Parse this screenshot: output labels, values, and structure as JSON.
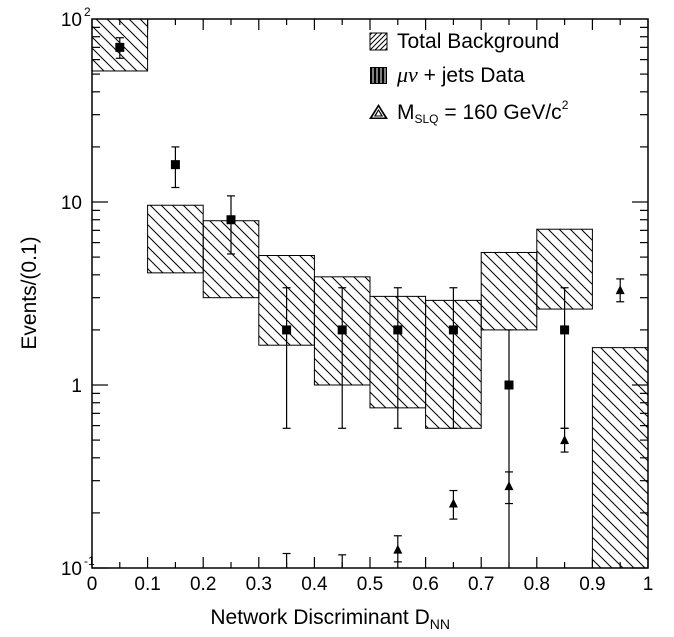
{
  "chart_data": {
    "type": "bar",
    "xlabel": "Network Discriminant D",
    "xlabel_sub": "NN",
    "ylabel": "Events/(0.1)",
    "xlim": [
      0,
      1
    ],
    "ylim": [
      0.1,
      100
    ],
    "y_scale": "log",
    "grid": false,
    "legend_position": "top-right",
    "x_ticks": [
      "0",
      "0.1",
      "0.2",
      "0.3",
      "0.4",
      "0.5",
      "0.6",
      "0.7",
      "0.8",
      "0.9",
      "1"
    ],
    "y_tick_labels": [
      {
        "value": 100,
        "base": "10",
        "exp": "2"
      },
      {
        "value": 10,
        "base": "10",
        "exp": ""
      },
      {
        "value": 1,
        "base": "1",
        "exp": ""
      },
      {
        "value": 0.1,
        "base": "10",
        "exp": "-1"
      }
    ],
    "legend": {
      "background": "Total Background",
      "data_prefix": "μν",
      "data_suffix": " + jets Data",
      "signal_main": "M",
      "signal_sub": "SLQ",
      "signal_value": " = 160 GeV/c",
      "signal_sup": "2"
    },
    "series": [
      {
        "name": "Total Background",
        "style": "hatched band",
        "bands": [
          {
            "x0": 0.0,
            "x1": 0.1,
            "low": 52,
            "high": 100
          },
          {
            "x0": 0.1,
            "x1": 0.2,
            "low": 4.1,
            "high": 9.6
          },
          {
            "x0": 0.2,
            "x1": 0.3,
            "low": 3.0,
            "high": 7.9
          },
          {
            "x0": 0.3,
            "x1": 0.4,
            "low": 1.65,
            "high": 5.1
          },
          {
            "x0": 0.4,
            "x1": 0.5,
            "low": 1.0,
            "high": 3.9
          },
          {
            "x0": 0.5,
            "x1": 0.6,
            "low": 0.75,
            "high": 3.05
          },
          {
            "x0": 0.6,
            "x1": 0.7,
            "low": 0.58,
            "high": 2.9
          },
          {
            "x0": 0.7,
            "x1": 0.8,
            "low": 2.0,
            "high": 5.3
          },
          {
            "x0": 0.8,
            "x1": 0.9,
            "low": 2.6,
            "high": 7.1
          },
          {
            "x0": 0.9,
            "x1": 1.0,
            "low": 0.1,
            "high": 1.6
          }
        ]
      },
      {
        "name": "μν + jets Data",
        "style": "square markers with error bars",
        "points": [
          {
            "x": 0.05,
            "y": 70,
            "err_low": 61,
            "err_high": 79
          },
          {
            "x": 0.15,
            "y": 16,
            "err_low": 12,
            "err_high": 20
          },
          {
            "x": 0.25,
            "y": 8,
            "err_low": 5.2,
            "err_high": 10.8
          },
          {
            "x": 0.35,
            "y": 2,
            "err_low": 0.58,
            "err_high": 3.4
          },
          {
            "x": 0.45,
            "y": 2,
            "err_low": 0.58,
            "err_high": 3.4
          },
          {
            "x": 0.55,
            "y": 2,
            "err_low": 0.58,
            "err_high": 3.4
          },
          {
            "x": 0.65,
            "y": 2,
            "err_low": 0.58,
            "err_high": 3.4
          },
          {
            "x": 0.75,
            "y": 1,
            "err_low": 0.1,
            "err_high": 2.0
          },
          {
            "x": 0.85,
            "y": 2,
            "err_low": 0.58,
            "err_high": 3.4
          }
        ],
        "partial_error_caps": [
          {
            "x": 0.35,
            "y": 0.12
          },
          {
            "x": 0.45,
            "y": 0.118
          }
        ]
      },
      {
        "name": "M_SLQ = 160 GeV/c^2",
        "style": "triangle markers with error bars",
        "points": [
          {
            "x": 0.55,
            "y": 0.126,
            "err_low": 0.108,
            "err_high": 0.15
          },
          {
            "x": 0.65,
            "y": 0.225,
            "err_low": 0.185,
            "err_high": 0.265
          },
          {
            "x": 0.75,
            "y": 0.28,
            "err_low": 0.225,
            "err_high": 0.335
          },
          {
            "x": 0.85,
            "y": 0.5,
            "err_low": 0.43,
            "err_high": 0.58
          },
          {
            "x": 0.95,
            "y": 3.3,
            "err_low": 2.85,
            "err_high": 3.8
          }
        ]
      }
    ]
  }
}
